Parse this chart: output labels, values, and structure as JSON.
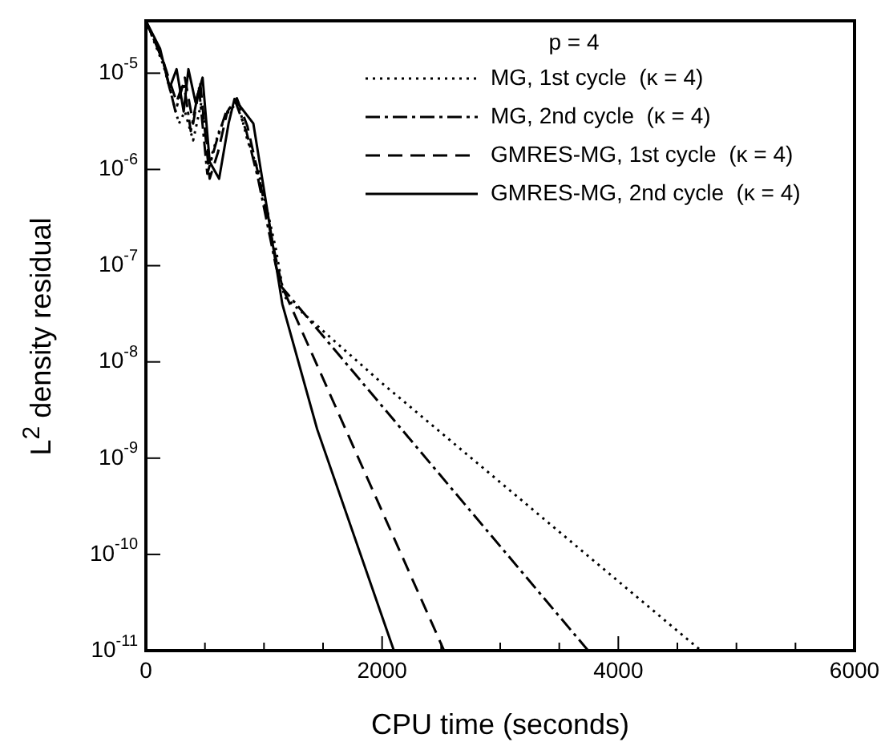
{
  "chart_data": {
    "type": "line",
    "xlabel": "CPU time (seconds)",
    "ylabel": "L$^{2}$ density residual",
    "legend_title": "p = 4",
    "legend": "top right",
    "grid": false,
    "marker": "none",
    "log": "y",
    "xlim": [
      0,
      6000
    ],
    "ylim": [
      1e-11,
      3.5e-05
    ],
    "xticks": [
      0,
      {
        "value": 500,
        "label": null
      },
      {
        "value": 1000,
        "label": null
      },
      {
        "value": 1500,
        "label": null
      },
      2000,
      {
        "value": 2500,
        "label": null
      },
      {
        "value": 3000,
        "label": null
      },
      {
        "value": 3500,
        "label": null
      },
      4000,
      {
        "value": 4500,
        "label": null
      },
      {
        "value": 5000,
        "label": null
      },
      {
        "value": 5500,
        "label": null
      },
      6000
    ],
    "yticks": [
      {
        "value": 1e-11,
        "label": "10$^{-11}$"
      },
      {
        "value": 1e-10,
        "label": "10$^{-10}$"
      },
      {
        "value": 1e-09,
        "label": "10$^{-9}$"
      },
      {
        "value": 1e-08,
        "label": "10$^{-8}$"
      },
      {
        "value": 1e-07,
        "label": "10$^{-7}$"
      },
      {
        "value": 1e-06,
        "label": "10$^{-6}$"
      },
      {
        "value": 1e-05,
        "label": "10$^{-5}$"
      }
    ],
    "series": [
      {
        "name": "MG, 1st cycle  (κ = 4)",
        "color": "#000000",
        "line_style": "dotted",
        "x": [
          0,
          150,
          280,
          330,
          400,
          470,
          540,
          620,
          700,
          780,
          860,
          950,
          1100,
          1170,
          2000,
          4700
        ],
        "values": [
          3.5e-05,
          1.2e-05,
          3e-06,
          4e-06,
          2e-06,
          5e-06,
          1.2e-06,
          2.5e-06,
          4e-06,
          5e-06,
          2e-06,
          1e-06,
          1.5e-07,
          4.8e-08,
          6e-09,
          1e-11
        ]
      },
      {
        "name": "MG, 2nd cycle  (κ = 4)",
        "color": "#000000",
        "line_style": "dashdot",
        "x": [
          0,
          150,
          250,
          320,
          380,
          450,
          520,
          600,
          680,
          760,
          850,
          950,
          1100,
          1150,
          3745
        ],
        "values": [
          3.5e-05,
          1.3e-05,
          4e-06,
          8e-06,
          2.5e-06,
          7e-06,
          9e-07,
          2e-06,
          4e-06,
          5e-06,
          2.5e-06,
          8e-07,
          1e-07,
          6e-08,
          1e-11
        ]
      },
      {
        "name": "GMRES-MG, 1st cycle  (κ = 4)",
        "color": "#000000",
        "line_style": "dashed",
        "x": [
          0,
          150,
          260,
          330,
          400,
          460,
          540,
          610,
          690,
          770,
          860,
          960,
          1100,
          1155,
          2525
        ],
        "values": [
          3.5e-05,
          1.3e-05,
          5e-06,
          9e-06,
          3e-06,
          8e-06,
          8e-07,
          1.5e-06,
          4e-06,
          5.5e-06,
          2.8e-06,
          8e-07,
          1.2e-07,
          6e-08,
          1e-11
        ]
      },
      {
        "name": "GMRES-MG, 2nd cycle  (κ = 4)",
        "color": "#000000",
        "line_style": "solid",
        "x": [
          0,
          120,
          200,
          260,
          320,
          360,
          420,
          480,
          540,
          620,
          700,
          750,
          910,
          1155,
          1450,
          2100
        ],
        "values": [
          3.5e-05,
          1.8e-05,
          7e-06,
          1.1e-05,
          4e-06,
          1.1e-05,
          5e-06,
          9e-06,
          1.2e-06,
          8e-07,
          3e-06,
          5.4e-06,
          3e-06,
          4e-08,
          2e-09,
          1e-11
        ]
      }
    ]
  }
}
